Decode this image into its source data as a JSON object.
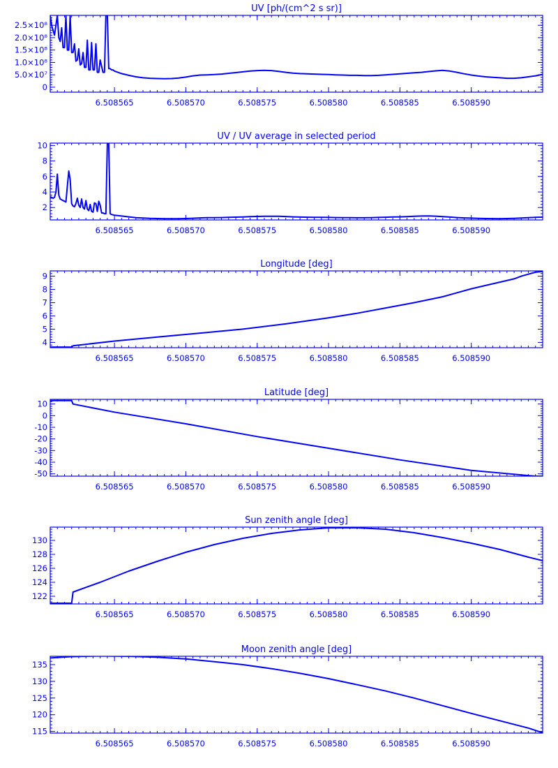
{
  "figure": {
    "color": "#0000ff"
  },
  "x_axis": {
    "xlim": [
      6.5085605,
      6.508595
    ],
    "ticks": [
      6.508565,
      6.50857,
      6.508575,
      6.50858,
      6.508585,
      6.50859
    ],
    "tick_labels": [
      "6.508565",
      "6.508570",
      "6.508575",
      "6.508580",
      "6.508585",
      "6.508590"
    ]
  },
  "chart_data": [
    {
      "id": "uv",
      "type": "line",
      "title": "UV [ph/(cm^2 s sr)]",
      "ylim": [
        -20000000,
        290000000
      ],
      "yticks": [
        0,
        50000000,
        100000000,
        150000000,
        200000000,
        250000000
      ],
      "ytick_labels": [
        "0",
        "5.0×10⁷",
        "1.0×10⁸",
        "1.5×10⁸",
        "2.0×10⁸",
        "2.5×10⁸"
      ],
      "x": [
        6.5085605,
        6.5085606,
        6.5085608,
        6.508561,
        6.5085611,
        6.5085612,
        6.5085613,
        6.5085614,
        6.5085615,
        6.5085616,
        6.5085617,
        6.5085618,
        6.5085619,
        6.508562,
        6.5085621,
        6.5085622,
        6.5085623,
        6.5085624,
        6.5085625,
        6.5085626,
        6.5085627,
        6.5085628,
        6.5085629,
        6.508563,
        6.5085631,
        6.5085632,
        6.5085633,
        6.5085634,
        6.5085635,
        6.5085636,
        6.5085637,
        6.5085638,
        6.5085639,
        6.508564,
        6.5085642,
        6.5085643,
        6.5085644,
        6.5085645,
        6.5085646,
        6.5085647,
        6.5085648,
        6.5085649,
        6.508565,
        6.5085655,
        6.508566,
        6.5085665,
        6.508567,
        6.5085675,
        6.508568,
        6.5085685,
        6.508569,
        6.5085695,
        6.50857,
        6.5085705,
        6.508571,
        6.5085715,
        6.508572,
        6.5085725,
        6.508573,
        6.5085735,
        6.508574,
        6.5085745,
        6.508575,
        6.5085755,
        6.508576,
        6.5085765,
        6.508577,
        6.5085775,
        6.508578,
        6.5085785,
        6.508579,
        6.5085795,
        6.50858,
        6.5085805,
        6.508581,
        6.5085815,
        6.508582,
        6.5085825,
        6.508583,
        6.5085835,
        6.508584,
        6.5085845,
        6.508585,
        6.5085855,
        6.508586,
        6.5085865,
        6.508587,
        6.5085875,
        6.508588,
        6.5085885,
        6.508589,
        6.5085895,
        6.50859,
        6.5085905,
        6.508591,
        6.5085915,
        6.508592,
        6.5085925,
        6.508593,
        6.5085935,
        6.508594,
        6.5085945,
        6.508595
      ],
      "y": [
        290000000,
        250000000,
        210000000,
        290000000,
        200000000,
        185000000,
        240000000,
        160000000,
        160000000,
        290000000,
        150000000,
        150000000,
        290000000,
        140000000,
        140000000,
        175000000,
        105000000,
        110000000,
        155000000,
        90000000,
        95000000,
        140000000,
        80000000,
        80000000,
        190000000,
        70000000,
        70000000,
        180000000,
        70000000,
        70000000,
        175000000,
        60000000,
        60000000,
        110000000,
        60000000,
        60000000,
        290000000,
        290000000,
        75000000,
        75000000,
        70000000,
        70000000,
        65000000,
        55000000,
        48000000,
        42000000,
        38000000,
        36000000,
        35000000,
        34000000,
        35000000,
        37000000,
        41000000,
        46000000,
        49000000,
        50000000,
        51000000,
        53000000,
        56000000,
        59000000,
        62000000,
        65000000,
        67000000,
        68000000,
        67000000,
        64000000,
        60000000,
        57000000,
        55000000,
        54000000,
        53000000,
        52000000,
        51000000,
        50000000,
        49000000,
        48000000,
        48000000,
        47000000,
        47000000,
        48000000,
        50000000,
        52000000,
        54000000,
        56000000,
        58000000,
        60000000,
        63000000,
        66000000,
        68000000,
        65000000,
        60000000,
        54000000,
        49000000,
        45000000,
        42000000,
        40000000,
        38000000,
        36000000,
        36000000,
        38000000,
        42000000,
        46000000,
        52000000
      ]
    },
    {
      "id": "uv-ratio",
      "type": "line",
      "title": "UV / UV average in selected period",
      "ylim": [
        0.4,
        10.3
      ],
      "yticks": [
        2,
        4,
        6,
        8,
        10
      ],
      "ytick_labels": [
        "2",
        "4",
        "6",
        "8",
        "10"
      ],
      "x": [
        6.5085605,
        6.5085606,
        6.5085607,
        6.5085608,
        6.5085609,
        6.508561,
        6.5085611,
        6.5085612,
        6.5085613,
        6.5085614,
        6.5085615,
        6.5085616,
        6.5085617,
        6.5085618,
        6.5085619,
        6.508562,
        6.5085621,
        6.5085622,
        6.5085623,
        6.5085624,
        6.5085625,
        6.5085626,
        6.5085627,
        6.5085628,
        6.5085629,
        6.508563,
        6.5085631,
        6.5085632,
        6.5085633,
        6.5085634,
        6.5085635,
        6.5085636,
        6.5085637,
        6.5085638,
        6.5085639,
        6.508564,
        6.5085641,
        6.5085642,
        6.5085643,
        6.5085644,
        6.5085645,
        6.5085646,
        6.5085647,
        6.5085648,
        6.508565,
        6.5085655,
        6.508566,
        6.5085665,
        6.508567,
        6.5085675,
        6.508568,
        6.5085685,
        6.508569,
        6.5085695,
        6.50857,
        6.5085705,
        6.508571,
        6.5085715,
        6.508572,
        6.5085725,
        6.508573,
        6.5085735,
        6.508574,
        6.5085745,
        6.508575,
        6.5085755,
        6.508576,
        6.5085765,
        6.508577,
        6.5085775,
        6.508578,
        6.5085785,
        6.508579,
        6.5085795,
        6.50858,
        6.5085805,
        6.508581,
        6.5085815,
        6.508582,
        6.5085825,
        6.508583,
        6.5085835,
        6.508584,
        6.5085845,
        6.508585,
        6.5085855,
        6.508586,
        6.5085865,
        6.508587,
        6.5085875,
        6.508588,
        6.5085885,
        6.508589,
        6.5085895,
        6.50859,
        6.5085905,
        6.508591,
        6.5085915,
        6.508592,
        6.5085925,
        6.508593,
        6.5085935,
        6.508594,
        6.5085945,
        6.508595
      ],
      "y": [
        3.4,
        3.3,
        3.2,
        3.3,
        4.0,
        6.3,
        3.6,
        3.1,
        3.0,
        2.9,
        2.8,
        2.7,
        4.8,
        6.7,
        5.6,
        2.5,
        2.2,
        2.1,
        2.5,
        3.2,
        2.3,
        2.0,
        3.1,
        2.0,
        1.8,
        2.9,
        1.8,
        1.6,
        2.4,
        1.5,
        1.4,
        2.6,
        2.5,
        1.5,
        2.8,
        2.3,
        1.3,
        1.3,
        1.2,
        1.2,
        10.3,
        10.3,
        1.2,
        1.1,
        1.0,
        0.9,
        0.8,
        0.7,
        0.65,
        0.6,
        0.58,
        0.56,
        0.55,
        0.56,
        0.58,
        0.62,
        0.66,
        0.69,
        0.7,
        0.71,
        0.73,
        0.76,
        0.79,
        0.82,
        0.85,
        0.87,
        0.88,
        0.87,
        0.84,
        0.8,
        0.77,
        0.75,
        0.74,
        0.73,
        0.72,
        0.71,
        0.7,
        0.69,
        0.68,
        0.68,
        0.7,
        0.72,
        0.75,
        0.78,
        0.8,
        0.83,
        0.87,
        0.9,
        0.92,
        0.89,
        0.83,
        0.77,
        0.71,
        0.66,
        0.63,
        0.6,
        0.58,
        0.57,
        0.56,
        0.58,
        0.61,
        0.65,
        0.69,
        0.73,
        0.76
      ]
    },
    {
      "id": "longitude",
      "type": "line",
      "title": "Longitude [deg]",
      "ylim": [
        3.6,
        9.4
      ],
      "yticks": [
        4,
        5,
        6,
        7,
        8,
        9
      ],
      "ytick_labels": [
        "4",
        "5",
        "6",
        "7",
        "8",
        "9"
      ],
      "x": [
        6.5085605,
        6.508562,
        6.5085621,
        6.508565,
        6.508568,
        6.508571,
        6.508574,
        6.508577,
        6.50858,
        6.508582,
        6.508584,
        6.508586,
        6.508588,
        6.508589,
        6.50859,
        6.508591,
        6.508592,
        6.508593,
        6.5085935,
        6.508594,
        6.5085945,
        6.508595
      ],
      "y": [
        3.65,
        3.65,
        3.75,
        4.1,
        4.4,
        4.7,
        5.0,
        5.4,
        5.85,
        6.2,
        6.6,
        7.0,
        7.45,
        7.75,
        8.05,
        8.3,
        8.55,
        8.8,
        9.0,
        9.15,
        9.3,
        9.35
      ]
    },
    {
      "id": "latitude",
      "type": "line",
      "title": "Latitude [deg]",
      "ylim": [
        -52,
        14
      ],
      "yticks": [
        -50,
        -40,
        -30,
        -20,
        -10,
        0,
        10
      ],
      "ytick_labels": [
        "-50",
        "-40",
        "-30",
        "-20",
        "-10",
        "0",
        "10"
      ],
      "x": [
        6.5085605,
        6.508562,
        6.5085621,
        6.508565,
        6.50857,
        6.508575,
        6.50858,
        6.508585,
        6.50859,
        6.5085945,
        6.508595
      ],
      "y": [
        13,
        13,
        10,
        3,
        -7,
        -18,
        -28,
        -38,
        -47,
        -52,
        -52
      ]
    },
    {
      "id": "sun-zenith",
      "type": "line",
      "title": "Sun zenith angle [deg]",
      "ylim": [
        120.9,
        131.9
      ],
      "yticks": [
        122,
        124,
        126,
        128,
        130
      ],
      "ytick_labels": [
        "122",
        "124",
        "126",
        "128",
        "130"
      ],
      "x": [
        6.5085605,
        6.508562,
        6.5085621,
        6.508564,
        6.508566,
        6.508568,
        6.50857,
        6.508572,
        6.508574,
        6.508576,
        6.508578,
        6.50858,
        6.508582,
        6.508584,
        6.508586,
        6.508588,
        6.50859,
        6.508592,
        6.508594,
        6.508595
      ],
      "y": [
        121.0,
        121.0,
        122.6,
        124.0,
        125.6,
        127.0,
        128.3,
        129.4,
        130.3,
        131.0,
        131.5,
        131.8,
        131.8,
        131.6,
        131.1,
        130.4,
        129.6,
        128.7,
        127.6,
        127.1
      ]
    },
    {
      "id": "moon-zenith",
      "type": "line",
      "title": "Moon zenith angle [deg]",
      "ylim": [
        114.5,
        137.5
      ],
      "yticks": [
        115,
        120,
        125,
        130,
        135
      ],
      "ytick_labels": [
        "115",
        "120",
        "125",
        "130",
        "135"
      ],
      "x": [
        6.5085605,
        6.508562,
        6.508564,
        6.508566,
        6.508568,
        6.50857,
        6.508572,
        6.508574,
        6.508576,
        6.508578,
        6.50858,
        6.508582,
        6.508584,
        6.508586,
        6.508588,
        6.50859,
        6.508592,
        6.508594,
        6.508595
      ],
      "y": [
        137.0,
        137.4,
        137.6,
        137.5,
        137.2,
        136.7,
        135.9,
        135.0,
        133.8,
        132.4,
        130.8,
        129.0,
        127.1,
        125.0,
        122.7,
        120.4,
        118.2,
        116.0,
        114.6
      ]
    }
  ]
}
